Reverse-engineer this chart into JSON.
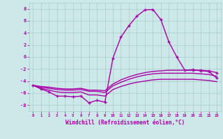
{
  "xlabel": "Windchill (Refroidissement éolien,°C)",
  "bg_color": "#cce8e8",
  "grid_color": "#aacccc",
  "line_color": "#aa00aa",
  "xlim": [
    -0.5,
    23.5
  ],
  "ylim": [
    -9,
    9
  ],
  "xticks": [
    0,
    1,
    2,
    3,
    4,
    5,
    6,
    7,
    8,
    9,
    10,
    11,
    12,
    13,
    14,
    15,
    16,
    17,
    18,
    19,
    20,
    21,
    22,
    23
  ],
  "yticks": [
    -8,
    -6,
    -4,
    -2,
    0,
    2,
    4,
    6,
    8
  ],
  "curve1_x": [
    0,
    1,
    2,
    3,
    4,
    5,
    6,
    7,
    8,
    9,
    10,
    11,
    12,
    13,
    14,
    15,
    16,
    17,
    18,
    19,
    20,
    21,
    22,
    23
  ],
  "curve1_y": [
    -4.7,
    -5.3,
    -5.8,
    -6.5,
    -6.5,
    -6.6,
    -6.5,
    -7.6,
    -7.2,
    -7.5,
    -0.2,
    3.3,
    5.2,
    6.8,
    7.8,
    7.9,
    6.2,
    2.5,
    0.0,
    -2.2,
    -2.1,
    -2.3,
    -2.4,
    -3.5
  ],
  "curve2_x": [
    0,
    1,
    2,
    3,
    4,
    5,
    6,
    7,
    8,
    9,
    10,
    11,
    12,
    13,
    14,
    15,
    16,
    17,
    18,
    19,
    20,
    21,
    22,
    23
  ],
  "curve2_y": [
    -4.7,
    -4.9,
    -5.0,
    -5.2,
    -5.3,
    -5.3,
    -5.2,
    -5.5,
    -5.5,
    -5.6,
    -4.5,
    -3.8,
    -3.3,
    -2.9,
    -2.6,
    -2.4,
    -2.3,
    -2.2,
    -2.2,
    -2.2,
    -2.2,
    -2.2,
    -2.3,
    -2.6
  ],
  "curve3_x": [
    0,
    1,
    2,
    3,
    4,
    5,
    6,
    7,
    8,
    9,
    10,
    11,
    12,
    13,
    14,
    15,
    16,
    17,
    18,
    19,
    20,
    21,
    22,
    23
  ],
  "curve3_y": [
    -4.7,
    -5.0,
    -5.2,
    -5.4,
    -5.5,
    -5.5,
    -5.4,
    -5.7,
    -5.7,
    -5.9,
    -4.8,
    -4.2,
    -3.7,
    -3.3,
    -3.0,
    -2.8,
    -2.7,
    -2.7,
    -2.7,
    -2.7,
    -2.7,
    -2.8,
    -2.9,
    -3.2
  ],
  "curve4_x": [
    0,
    1,
    2,
    3,
    4,
    5,
    6,
    7,
    8,
    9,
    10,
    11,
    12,
    13,
    14,
    15,
    16,
    17,
    18,
    19,
    20,
    21,
    22,
    23
  ],
  "curve4_y": [
    -4.7,
    -5.2,
    -5.5,
    -5.8,
    -5.9,
    -5.9,
    -5.8,
    -6.3,
    -6.3,
    -6.5,
    -5.4,
    -4.9,
    -4.5,
    -4.2,
    -4.0,
    -3.8,
    -3.7,
    -3.7,
    -3.7,
    -3.7,
    -3.7,
    -3.8,
    -3.9,
    -4.1
  ]
}
